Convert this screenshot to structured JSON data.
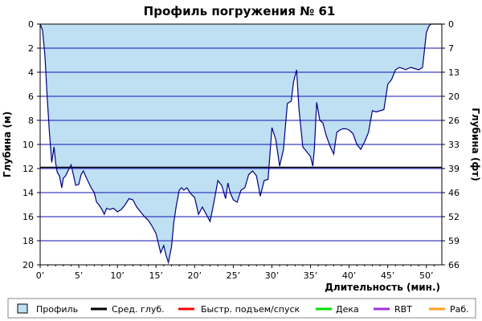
{
  "chart_data": {
    "type": "area",
    "title": "Профиль погружения № 61",
    "xlabel": "Длительность (мин.)",
    "ylabel_left": "Глубина (м)",
    "ylabel_right": "Глубина (фт)",
    "xlim": [
      0,
      52
    ],
    "ylim": [
      0,
      20
    ],
    "y_inverted": true,
    "grid": true,
    "x_ticks": [
      "0’",
      "5’",
      "10’",
      "15’",
      "20’",
      "25’",
      "30’",
      "35’",
      "40’",
      "45’",
      "50’"
    ],
    "x_tick_values": [
      0,
      5,
      10,
      15,
      20,
      25,
      30,
      35,
      40,
      45,
      50
    ],
    "y_ticks_left": [
      "0",
      "2",
      "4",
      "6",
      "8",
      "10",
      "12",
      "14",
      "16",
      "18",
      "20"
    ],
    "y_tick_values_left": [
      0,
      2,
      4,
      6,
      8,
      10,
      12,
      14,
      16,
      18,
      20
    ],
    "y_ticks_right": [
      "0",
      "7",
      "13",
      "20",
      "26",
      "33",
      "39",
      "46",
      "52",
      "59",
      "66"
    ],
    "average_depth": 11.9,
    "colors": {
      "area_fill": "#bfdff2",
      "profile_line": "#000080",
      "grid": "#1010b8",
      "avg_line": "#000000",
      "ascent": "#ff0000",
      "deco": "#00e000",
      "rbt": "#a030e0",
      "work": "#ffa020"
    },
    "series": [
      {
        "name": "Профиль",
        "x": [
          0,
          0.3,
          0.6,
          0.9,
          1.2,
          1.5,
          1.8,
          2.0,
          2.2,
          2.5,
          2.8,
          3.0,
          3.3,
          3.6,
          4.0,
          4.3,
          4.6,
          5.0,
          5.3,
          5.6,
          6.0,
          6.3,
          6.6,
          7.0,
          7.3,
          7.6,
          8.0,
          8.3,
          8.6,
          9.0,
          9.5,
          10.0,
          10.5,
          11.0,
          11.5,
          12.0,
          12.5,
          13.0,
          13.5,
          14.0,
          14.5,
          15.0,
          15.3,
          15.6,
          16.0,
          16.3,
          16.6,
          17.0,
          17.3,
          17.6,
          18.0,
          18.3,
          18.6,
          19.0,
          19.5,
          20.0,
          20.5,
          21.0,
          21.5,
          22.0,
          22.5,
          23.0,
          23.5,
          24.0,
          24.3,
          24.6,
          25.0,
          25.5,
          26.0,
          26.5,
          27.0,
          27.5,
          28.0,
          28.5,
          29.0,
          29.5,
          30.0,
          30.5,
          31.0,
          31.5,
          32.0,
          32.5,
          32.8,
          33.2,
          33.5,
          34.0,
          34.5,
          35.0,
          35.3,
          35.5,
          35.8,
          36.2,
          36.6,
          37.0,
          37.5,
          38.0,
          38.4,
          38.8,
          39.2,
          39.6,
          40.0,
          40.5,
          41.0,
          41.5,
          42.0,
          42.5,
          43.0,
          43.5,
          44.0,
          44.5,
          45.0,
          45.5,
          46.0,
          46.5,
          47.0,
          47.3,
          47.6,
          48.0,
          48.5,
          49.0,
          49.5,
          50.0,
          50.3,
          50.6,
          51.0,
          51.3,
          51.6,
          52.0
        ],
        "y": [
          0,
          0.5,
          2.5,
          6.0,
          9.0,
          11.5,
          10.2,
          11.5,
          12.3,
          12.6,
          13.6,
          12.8,
          12.6,
          12.2,
          11.7,
          12.5,
          13.4,
          13.3,
          12.5,
          12.2,
          12.8,
          13.2,
          13.6,
          14.0,
          14.8,
          15.0,
          15.4,
          15.8,
          15.3,
          15.4,
          15.3,
          15.6,
          15.4,
          15.0,
          14.5,
          14.6,
          15.2,
          15.6,
          16.0,
          16.3,
          16.8,
          17.4,
          18.2,
          19.0,
          18.4,
          19.2,
          19.8,
          18.5,
          16.5,
          15.2,
          13.8,
          13.6,
          13.8,
          13.6,
          14.1,
          14.4,
          15.8,
          15.2,
          15.8,
          16.4,
          14.8,
          13.0,
          13.4,
          14.5,
          13.2,
          14.0,
          14.6,
          14.8,
          13.8,
          13.6,
          12.5,
          12.2,
          12.6,
          14.3,
          13.0,
          12.9,
          8.6,
          9.6,
          11.8,
          10.4,
          6.6,
          6.4,
          4.8,
          3.8,
          7.0,
          10.2,
          10.6,
          11.0,
          11.8,
          10.4,
          6.5,
          8.0,
          8.2,
          9.2,
          10.1,
          10.8,
          9.0,
          8.8,
          8.7,
          8.7,
          8.8,
          9.1,
          10.0,
          10.4,
          9.8,
          9.0,
          7.2,
          7.3,
          7.2,
          7.1,
          5.0,
          4.6,
          3.8,
          3.6,
          3.7,
          3.8,
          3.7,
          3.6,
          3.7,
          3.8,
          3.6,
          0.7,
          0.2,
          0,
          0,
          0,
          0,
          0
        ],
        "fill": true
      }
    ],
    "legend": [
      "Профиль",
      "Сред. глуб.",
      "Быстр. подъем/спуск",
      "Дека",
      "RBT",
      "Раб."
    ],
    "legend_placement": "bottom"
  }
}
